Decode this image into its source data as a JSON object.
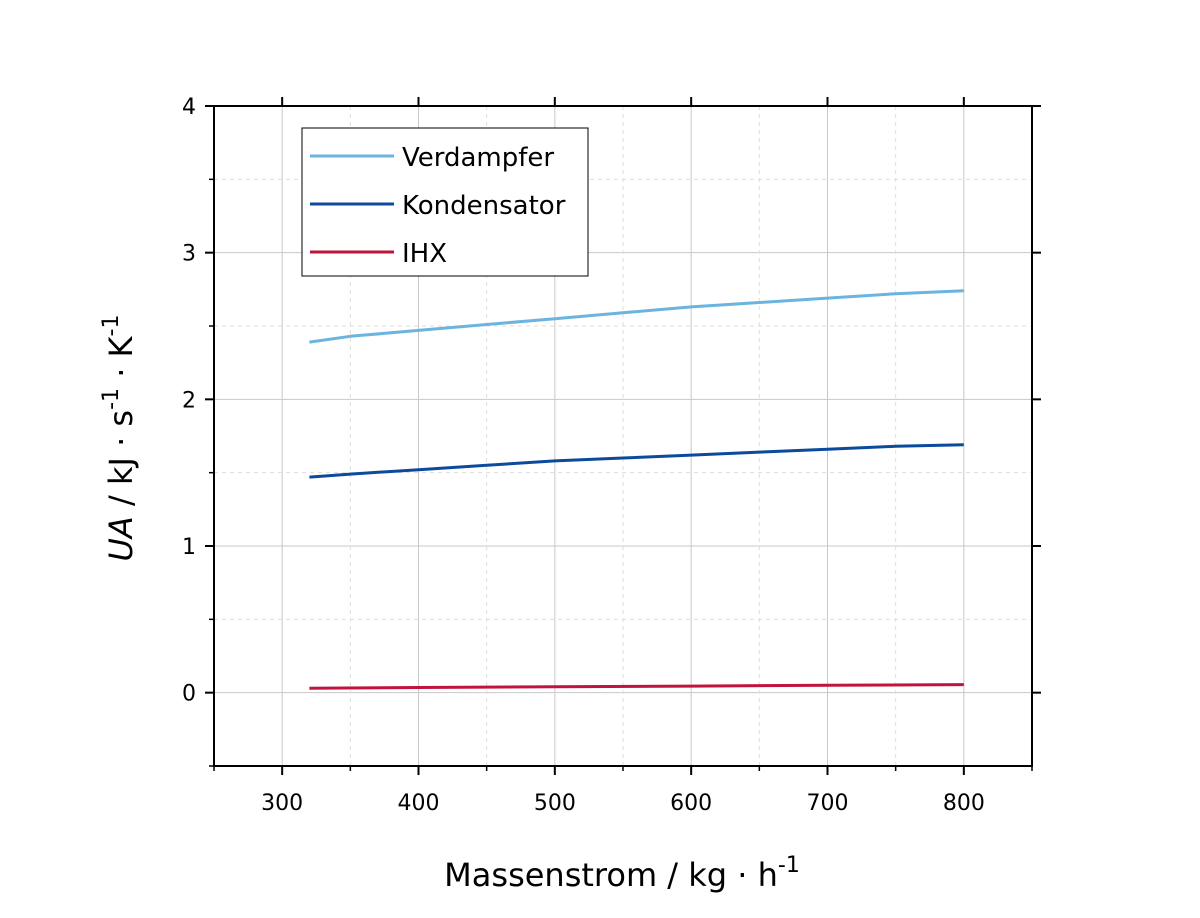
{
  "chart_data": {
    "type": "line",
    "xlabel": {
      "main": "Massenstrom  /  kg · h",
      "sup": "-1"
    },
    "ylabel": {
      "var": "UA",
      "sep": "  /  kJ · s",
      "sup1": "-1",
      "mid": " · K",
      "sup2": "-1"
    },
    "xlim": [
      250,
      850
    ],
    "ylim": [
      -0.5,
      4
    ],
    "xticks": [
      300,
      400,
      500,
      600,
      700,
      800
    ],
    "yticks": [
      0,
      1,
      2,
      3,
      4
    ],
    "grid": true,
    "legend_position": "top-left",
    "series": [
      {
        "name": "Verdampfer",
        "color": "#6cb4e0",
        "x": [
          320,
          350,
          400,
          450,
          500,
          550,
          600,
          650,
          700,
          750,
          800
        ],
        "y": [
          2.39,
          2.43,
          2.47,
          2.51,
          2.55,
          2.59,
          2.63,
          2.66,
          2.69,
          2.72,
          2.74
        ]
      },
      {
        "name": "Kondensator",
        "color": "#0b4a9c",
        "x": [
          320,
          350,
          400,
          450,
          500,
          550,
          600,
          650,
          700,
          750,
          800
        ],
        "y": [
          1.47,
          1.49,
          1.52,
          1.55,
          1.58,
          1.6,
          1.62,
          1.64,
          1.66,
          1.68,
          1.69
        ]
      },
      {
        "name": "IHX",
        "color": "#c0143c",
        "x": [
          320,
          400,
          500,
          600,
          700,
          800
        ],
        "y": [
          0.03,
          0.035,
          0.04,
          0.045,
          0.05,
          0.055
        ]
      }
    ]
  }
}
